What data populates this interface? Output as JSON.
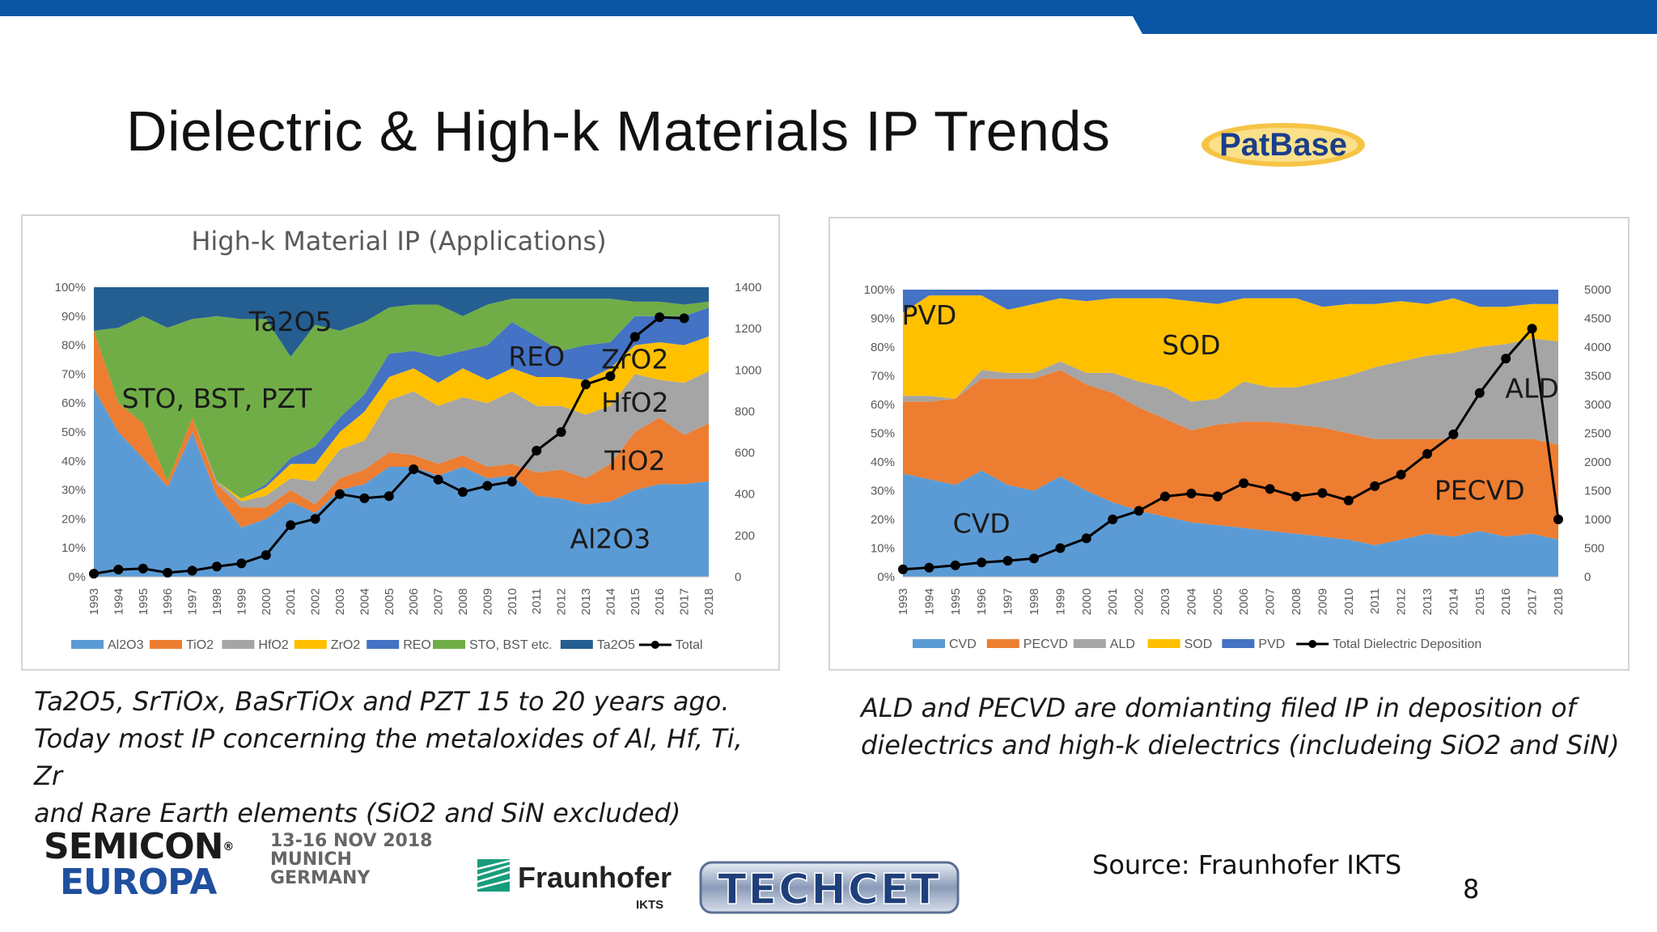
{
  "slide": {
    "title": "Dielectric & High-k Materials IP Trends",
    "logo_patbase": "PatBase",
    "caption_left": [
      "Ta2O5, SrTiOx, BaSrTiOx and PZT 15 to 20 years ago.",
      "Today most IP concerning the metaloxides of Al, Hf, Ti, Zr",
      "and Rare Earth elements (SiO2 and SiN excluded)"
    ],
    "caption_right": [
      "ALD and PECVD are domianting filed IP in deposition of",
      "dielectrics and high-k dielectrics (includeing SiO2 and SiN)"
    ],
    "semicon_word1": "SEMICON",
    "semicon_word2": "EUROPA",
    "event_line1": "13-16 NOV 2018",
    "event_line2": "MUNICH",
    "event_line3": "GERMANY",
    "fraunhofer_name": "Fraunhofer",
    "fraunhofer_sub": "IKTS",
    "techcet": "TECHCET",
    "source": "Source: Fraunhofer IKTS",
    "page_number": "8",
    "colors": {
      "top_bar": "#0b56a4",
      "blue": "#5b9bd5",
      "orange": "#ed7d31",
      "gray": "#a5a5a5",
      "gold": "#ffc000",
      "royal": "#4472c4",
      "green": "#70ad47",
      "navy": "#255e91"
    }
  },
  "chart_data": [
    {
      "type": "area",
      "title": "High-k Material IP (Applications)",
      "stacked_percent": true,
      "x": [
        "1993",
        "1994",
        "1995",
        "1996",
        "1997",
        "1998",
        "1999",
        "2000",
        "2001",
        "2002",
        "2003",
        "2004",
        "2005",
        "2006",
        "2007",
        "2008",
        "2009",
        "2010",
        "2011",
        "2012",
        "2013",
        "2014",
        "2015",
        "2016",
        "2017",
        "2018"
      ],
      "y_left_ticks": [
        "0%",
        "10%",
        "20%",
        "30%",
        "40%",
        "50%",
        "60%",
        "70%",
        "80%",
        "90%",
        "100%"
      ],
      "y_right_ticks": [
        "0",
        "200",
        "400",
        "600",
        "800",
        "1000",
        "1200",
        "1400"
      ],
      "ylim_left": [
        0,
        100
      ],
      "ylim_right": [
        0,
        1400
      ],
      "series": [
        {
          "name": "Al2O3",
          "color": "#5b9bd5",
          "values": [
            65,
            50,
            41,
            31,
            50,
            28,
            17,
            20,
            26,
            22,
            30,
            32,
            38,
            38,
            35,
            38,
            34,
            35,
            28,
            27,
            25,
            26,
            30,
            32,
            32,
            33
          ]
        },
        {
          "name": "TiO2",
          "color": "#ed7d31",
          "values": [
            20,
            10,
            12,
            2,
            5,
            4,
            7,
            4,
            4,
            3,
            4,
            5,
            5,
            4,
            4,
            4,
            4,
            4,
            8,
            10,
            9,
            13,
            20,
            23,
            17,
            20
          ]
        },
        {
          "name": "HfO2",
          "color": "#a5a5a5",
          "values": [
            0,
            0,
            0,
            0,
            0,
            1,
            2,
            4,
            4,
            8,
            10,
            10,
            18,
            22,
            20,
            20,
            22,
            25,
            23,
            22,
            22,
            20,
            20,
            13,
            18,
            18
          ]
        },
        {
          "name": "ZrO2",
          "color": "#ffc000",
          "values": [
            0,
            0,
            0,
            0,
            0,
            0,
            1,
            3,
            5,
            6,
            6,
            10,
            8,
            8,
            8,
            10,
            8,
            8,
            10,
            10,
            12,
            13,
            10,
            13,
            13,
            12
          ]
        },
        {
          "name": "REO",
          "color": "#4472c4",
          "values": [
            0,
            0,
            0,
            0,
            0,
            0,
            0,
            1,
            2,
            6,
            5,
            6,
            8,
            6,
            9,
            6,
            12,
            16,
            14,
            9,
            12,
            9,
            10,
            9,
            10,
            10
          ]
        },
        {
          "name": "STO, BST etc.",
          "color": "#70ad47",
          "values": [
            0,
            26,
            37,
            53,
            34,
            57,
            62,
            57,
            35,
            42,
            30,
            25,
            16,
            16,
            18,
            12,
            14,
            8,
            13,
            18,
            16,
            15,
            5,
            5,
            4,
            2
          ]
        },
        {
          "name": "Ta2O5",
          "color": "#255e91",
          "values": [
            15,
            14,
            10,
            14,
            11,
            10,
            11,
            11,
            24,
            13,
            15,
            12,
            7,
            6,
            6,
            10,
            6,
            4,
            4,
            4,
            4,
            4,
            5,
            5,
            6,
            5
          ]
        }
      ],
      "line": {
        "name": "Total",
        "color": "#000000",
        "values": [
          15,
          35,
          40,
          20,
          30,
          50,
          65,
          105,
          250,
          280,
          400,
          380,
          390,
          520,
          470,
          410,
          440,
          460,
          610,
          700,
          930,
          970,
          1160,
          1255,
          1250,
          null
        ]
      },
      "area_labels": [
        {
          "text": "Ta2O5",
          "series": "Ta2O5"
        },
        {
          "text": "STO, BST, PZT",
          "series": "STO, BST etc."
        },
        {
          "text": "REO",
          "series": "REO"
        },
        {
          "text": "ZrO2",
          "series": "ZrO2"
        },
        {
          "text": "HfO2",
          "series": "HfO2"
        },
        {
          "text": "TiO2",
          "series": "TiO2"
        },
        {
          "text": "Al2O3",
          "series": "Al2O3"
        }
      ],
      "legend_position": "bottom"
    },
    {
      "type": "area",
      "title": "",
      "stacked_percent": true,
      "x": [
        "1993",
        "1994",
        "1995",
        "1996",
        "1997",
        "1998",
        "1999",
        "2000",
        "2001",
        "2002",
        "2003",
        "2004",
        "2005",
        "2006",
        "2007",
        "2008",
        "2009",
        "2010",
        "2011",
        "2012",
        "2013",
        "2014",
        "2015",
        "2016",
        "2017",
        "2018"
      ],
      "y_left_ticks": [
        "0%",
        "10%",
        "20%",
        "30%",
        "40%",
        "50%",
        "60%",
        "70%",
        "80%",
        "90%",
        "100%"
      ],
      "y_right_ticks": [
        "0",
        "500",
        "1000",
        "1500",
        "2000",
        "2500",
        "3000",
        "3500",
        "4000",
        "4500",
        "5000"
      ],
      "ylim_left": [
        0,
        100
      ],
      "ylim_right": [
        0,
        5000
      ],
      "series": [
        {
          "name": "CVD",
          "color": "#5b9bd5",
          "values": [
            36,
            34,
            32,
            37,
            32,
            30,
            35,
            30,
            26,
            23,
            21,
            19,
            18,
            17,
            16,
            15,
            14,
            13,
            11,
            13,
            15,
            14,
            16,
            14,
            15,
            13
          ]
        },
        {
          "name": "PECVD",
          "color": "#ed7d31",
          "values": [
            25,
            27,
            30,
            32,
            37,
            39,
            37,
            37,
            38,
            36,
            34,
            32,
            35,
            37,
            38,
            38,
            38,
            37,
            37,
            35,
            33,
            34,
            32,
            34,
            33,
            33
          ]
        },
        {
          "name": "ALD",
          "color": "#a5a5a5",
          "values": [
            2,
            2,
            0,
            3,
            2,
            2,
            3,
            4,
            7,
            9,
            11,
            10,
            9,
            14,
            12,
            13,
            16,
            20,
            25,
            27,
            29,
            30,
            32,
            33,
            35,
            36
          ]
        },
        {
          "name": "SOD",
          "color": "#ffc000",
          "values": [
            29,
            35,
            36,
            26,
            22,
            24,
            22,
            25,
            26,
            29,
            31,
            35,
            33,
            29,
            31,
            31,
            26,
            25,
            22,
            21,
            18,
            19,
            14,
            13,
            12,
            13
          ]
        },
        {
          "name": "PVD",
          "color": "#4472c4",
          "values": [
            8,
            2,
            2,
            2,
            7,
            5,
            3,
            4,
            3,
            3,
            3,
            4,
            5,
            3,
            3,
            3,
            6,
            5,
            5,
            4,
            5,
            3,
            6,
            6,
            5,
            5
          ]
        }
      ],
      "line": {
        "name": "Total Dielectric Deposition",
        "color": "#000000",
        "values": [
          130,
          160,
          200,
          250,
          280,
          320,
          500,
          670,
          1000,
          1150,
          1400,
          1450,
          1400,
          1630,
          1530,
          1400,
          1460,
          1330,
          1580,
          1780,
          2140,
          2480,
          3200,
          3800,
          4320,
          1000
        ]
      },
      "area_labels": [
        {
          "text": "PVD",
          "series": "PVD"
        },
        {
          "text": "SOD",
          "series": "SOD"
        },
        {
          "text": "ALD",
          "series": "ALD"
        },
        {
          "text": "PECVD",
          "series": "PECVD"
        },
        {
          "text": "CVD",
          "series": "CVD"
        }
      ],
      "legend_position": "bottom"
    }
  ]
}
